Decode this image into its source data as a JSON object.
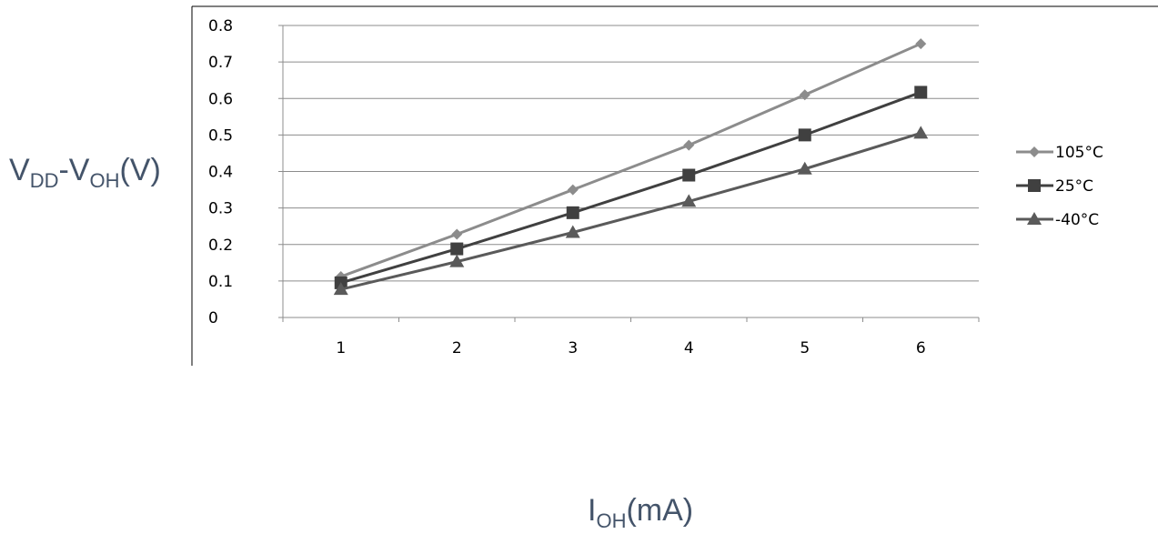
{
  "chart_data": {
    "type": "line",
    "x": [
      1,
      2,
      3,
      4,
      5,
      6
    ],
    "categories": [
      "1",
      "2",
      "3",
      "4",
      "5",
      "6"
    ],
    "ylim": [
      0,
      0.8
    ],
    "yticks": [
      "0",
      "0.1",
      "0.2",
      "0.3",
      "0.4",
      "0.5",
      "0.6",
      "0.7",
      "0.8"
    ],
    "grid": "horizontal",
    "legend_position": "right",
    "ylabel": {
      "main": "V",
      "sub1": "DD",
      "dash": "-V",
      "sub2": "OH",
      "unit": "(V)"
    },
    "xlabel": {
      "main": "I",
      "sub": "OH",
      "unit": "(mA)"
    },
    "series": [
      {
        "name": "105°C",
        "marker": "diamond",
        "color": "#8c8c8c",
        "values": [
          0.112,
          0.228,
          0.35,
          0.472,
          0.61,
          0.75
        ]
      },
      {
        "name": "25°C",
        "marker": "square",
        "color": "#404040",
        "values": [
          0.095,
          0.188,
          0.287,
          0.39,
          0.5,
          0.617
        ]
      },
      {
        "name": "-40°C",
        "marker": "triangle",
        "color": "#5a5a5a",
        "values": [
          0.077,
          0.153,
          0.233,
          0.318,
          0.407,
          0.505
        ]
      }
    ]
  }
}
